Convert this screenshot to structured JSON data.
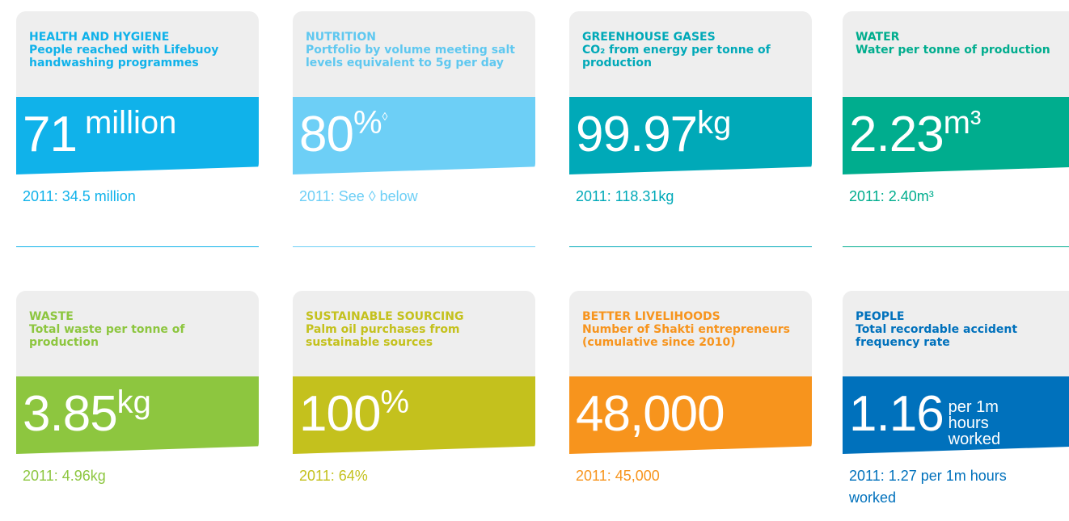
{
  "cards": [
    {
      "category": "HEALTH AND HYGIENE",
      "description": "People reached with Lifebuoy handwashing programmes",
      "value": "71",
      "unit": "million",
      "previous": "2011: 34.5 million",
      "color": "#10b2ea"
    },
    {
      "category": "NUTRITION",
      "description": "Portfolio by volume meeting salt levels equivalent to 5g per day",
      "value": "80",
      "unit": "%",
      "mark": "◊",
      "previous": "2011: See ◊ below",
      "color": "#6dcff6"
    },
    {
      "category": "GREENHOUSE GASES",
      "description": "CO₂ from energy per tonne of production",
      "value": "99.97",
      "unit": "kg",
      "previous": "2011: 118.31kg",
      "color": "#00a9b8"
    },
    {
      "category": "WATER",
      "description": "Water per tonne of production",
      "value": "2.23",
      "unit": "m³",
      "previous": "2011: 2.40m³",
      "color": "#00ad8e"
    },
    {
      "category": "WASTE",
      "description": "Total waste per tonne of production",
      "value": "3.85",
      "unit": "kg",
      "previous": "2011: 4.96kg",
      "color": "#8dc63f"
    },
    {
      "category": "SUSTAINABLE SOURCING",
      "description": "Palm oil purchases from sustainable sources",
      "value": "100",
      "unit": "%",
      "previous": "2011: 64%",
      "color": "#c4c11d"
    },
    {
      "category": "BETTER LIVELIHOODS",
      "description": "Number of Shakti entrepreneurs (cumulative since 2010)",
      "value": "48,000",
      "unit": "",
      "previous": "2011: 45,000",
      "color": "#f7941d"
    },
    {
      "category": "PEOPLE",
      "description": "Total recordable accident frequency rate",
      "value": "1.16",
      "unit": "per 1m hours worked",
      "small_unit": true,
      "previous": "2011: 1.27 per 1m hours worked",
      "color": "#0071bc"
    }
  ]
}
